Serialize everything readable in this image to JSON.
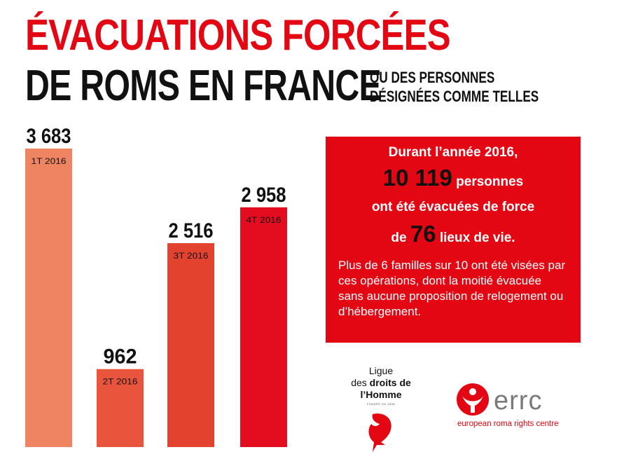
{
  "header": {
    "title_line1": "ÉVACUATIONS FORCÉES",
    "title_line2": "DE ROMS EN FRANCE",
    "subtitle_line1": "OU DES PERSONNES",
    "subtitle_line2": "DÉSIGNÉES COMME TELLES"
  },
  "chart_data": {
    "type": "bar",
    "categories": [
      "1T 2016",
      "2T 2016",
      "3T 2016",
      "4T 2016"
    ],
    "values": [
      3683,
      962,
      2516,
      2958
    ],
    "value_labels": [
      "3 683",
      "962",
      "2 516",
      "2 958"
    ],
    "bar_colors": [
      "#ef8463",
      "#e8553c",
      "#e3422f",
      "#e30d1f"
    ],
    "label_color": "#111111",
    "category_label_color": "#111111",
    "ylim": [
      0,
      3683
    ],
    "grid": false
  },
  "info_box": {
    "line1": "Durant l’année 2016,",
    "total_number": "10 119",
    "line2_suffix": " personnes",
    "line3": "ont été évacuées de force",
    "line4_prefix": "de ",
    "sites_number": "76",
    "line4_suffix": " lieux de vie.",
    "paragraph": "Plus de 6 familles sur 10 ont été visées par ces opérations, dont la moitié évacuée sans aucune proposition de relogement ou d’hébergement.",
    "background_color": "#e30613"
  },
  "logos": {
    "ldh_line1": "Ligue",
    "ldh_line2_a": "des ",
    "ldh_line2_b": "droits de",
    "ldh_line3": "l’Homme",
    "ldh_small": "FONDÉE EN 1898",
    "errc_word": "errc",
    "errc_sub": "european roma rights centre"
  },
  "colors": {
    "accent_red": "#e30613",
    "dark_text": "#111111",
    "errc_grey": "#7a7a7a"
  }
}
